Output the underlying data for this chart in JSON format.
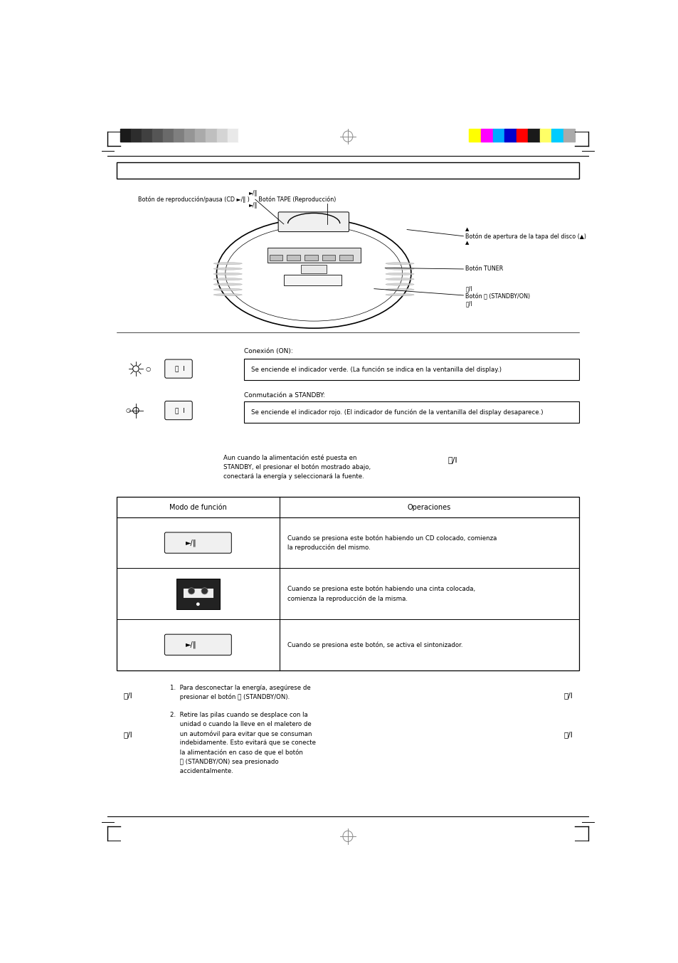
{
  "page_bg": "#ffffff",
  "page_width": 9.54,
  "page_height": 13.53,
  "gray_bar_colors": [
    "#1a1a1a",
    "#2d2d2d",
    "#404040",
    "#555555",
    "#6a6a6a",
    "#7f7f7f",
    "#959595",
    "#aaaaaa",
    "#bfbfbf",
    "#d4d4d4",
    "#e9e9e9",
    "#ffffff"
  ],
  "color_bar_colors": [
    "#ffff00",
    "#ff00ff",
    "#00aaff",
    "#0000cc",
    "#ff0000",
    "#1a1a1a",
    "#ffff66",
    "#00ccff",
    "#aaaaaa"
  ],
  "label_cd_tape": "Botón de reproducción/pausa (CD ►/‖ )     Botón TAPE (Reproducción)",
  "label_open": "Botón de apertura de la tapa del disco (▲)",
  "label_tuner": "Botón TUNER",
  "label_standby": "Botón ⏻ (STANDBY/ON)",
  "conexion_label": "Conexión (ON):",
  "conexion_text": "Se enciende el indicador verde. (La función se indica en la ventanilla del display.)",
  "conmutacion_label": "Conmutación a STANDBY:",
  "conmutacion_text": "Se enciende el indicador rojo. (El indicador de función de la ventanilla del display desaparece.)",
  "standby_note_line1": "Aun cuando la alimentación esté puesta en",
  "standby_note_line2": "STANDBY, el presionar el botón mostrado abajo,",
  "standby_note_line3": "conectará la energía y seleccionará la fuente.",
  "table_header_mode": "Modo de función",
  "table_header_ops": "Operaciones",
  "row1_text_line1": "Cuando se presiona este botón habiendo un CD colocado, comienza",
  "row1_text_line2": "la reproducción del mismo.",
  "row2_text_line1": "Cuando se presiona este botón habiendo una cinta colocada,",
  "row2_text_line2": "comienza la reproducción de la misma.",
  "row3_text": "Cuando se presiona este botón, se activa el sintonizador.",
  "note1_line1": "1.  Para desconectar la energía, asegúrese de",
  "note1_line2": "     presionar el botón ⏻ (STANDBY/ON).",
  "note2_line1": "2.  Retire las pilas cuando se desplace con la",
  "note2_line2": "     unidad o cuando la lleve en el maletero de",
  "note2_line3": "     un automóvil para evitar que se consuman",
  "note2_line4": "     indebidamente. Esto evitará que se conecte",
  "note2_line5": "     la alimentación en caso de que el botón",
  "note2_line6": "     ⏻ (STANDBY/ON) sea presionado",
  "note2_line7": "     accidentalmente."
}
